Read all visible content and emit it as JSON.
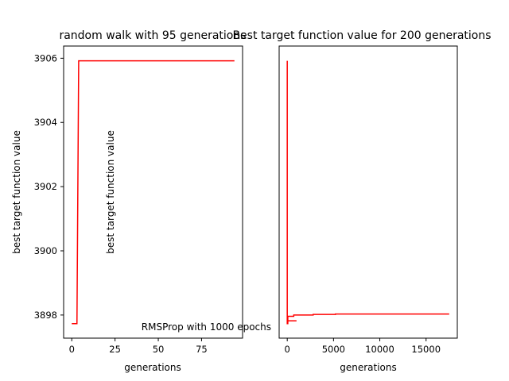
{
  "chart_data": [
    {
      "type": "line",
      "title": "random walk with 95 generations",
      "xlabel": "generations",
      "ylabel": "best target function value",
      "xlim": [
        -4.7,
        98.7
      ],
      "ylim": [
        3897.28,
        3906.38
      ],
      "xticks": [
        0,
        25,
        50,
        75
      ],
      "yticks": [
        3898,
        3900,
        3902,
        3904,
        3906
      ],
      "xtick_labels": [
        "0",
        "25",
        "50",
        "75"
      ],
      "ytick_labels": [
        "3898",
        "3900",
        "3902",
        "3904",
        "3906"
      ],
      "extra_text": "best target function value",
      "grid": false,
      "series": [
        {
          "color": "#ff0000",
          "x": [
            0,
            3,
            4,
            94
          ],
          "y": [
            3897.73,
            3897.73,
            3905.92,
            3905.92
          ]
        }
      ]
    },
    {
      "type": "line",
      "title": "Best target function value for 200 generations",
      "xlabel": "generations",
      "ylabel": "",
      "xlim": [
        -875,
        18375
      ],
      "ylim": [
        3897.28,
        3906.38
      ],
      "xticks": [
        0,
        5000,
        10000,
        15000
      ],
      "yticks": [],
      "xtick_labels": [
        "0",
        "5000",
        "10000",
        "15000"
      ],
      "ytick_labels": [],
      "extra_text": "RMSProp with 1000 epochs",
      "grid": false,
      "series": [
        {
          "color": "#ff0000",
          "x": [
            0,
            0,
            60,
            60,
            700,
            700,
            2800,
            2800,
            5200,
            5200,
            17500
          ],
          "y": [
            3905.92,
            3897.73,
            3897.73,
            3897.96,
            3897.96,
            3898.0,
            3898.0,
            3898.02,
            3898.02,
            3898.03,
            3898.03
          ]
        },
        {
          "color": "#ff0000",
          "x": [
            60,
            1000
          ],
          "y": [
            3897.82,
            3897.82
          ]
        }
      ]
    }
  ]
}
